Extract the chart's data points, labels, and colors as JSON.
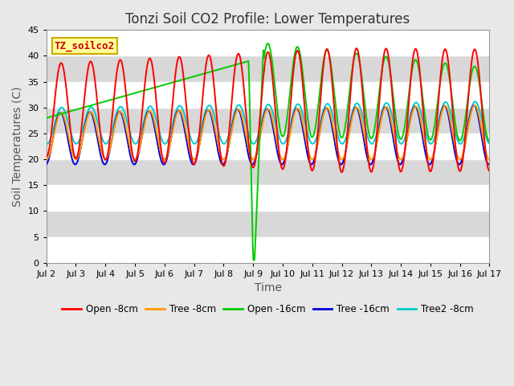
{
  "title": "Tonzi Soil CO2 Profile: Lower Temperatures",
  "xlabel": "Time",
  "ylabel": "Soil Temperatures (C)",
  "ylim": [
    0,
    45
  ],
  "yticks": [
    0,
    5,
    10,
    15,
    20,
    25,
    30,
    35,
    40,
    45
  ],
  "xtick_labels": [
    "Jul 2",
    "Jul 3",
    "Jul 4",
    "Jul 5",
    "Jul 6",
    "Jul 7",
    "Jul 8",
    "Jul 9",
    "Jul 10",
    "Jul 11",
    "Jul 12",
    "Jul 13",
    "Jul 14",
    "Jul 15",
    "Jul 16",
    "Jul 17"
  ],
  "series_colors": {
    "Open -8cm": "#ff0000",
    "Tree -8cm": "#ff9900",
    "Open -16cm": "#00cc00",
    "Tree -16cm": "#0000dd",
    "Tree2 -8cm": "#00cccc"
  },
  "legend_box_facecolor": "#ffff99",
  "legend_box_edgecolor": "#ccaa00",
  "legend_text_color": "#cc0000",
  "legend_label": "TZ_soilco2",
  "bg_color": "#e8e8e8",
  "plot_bg_upper": "#f0f0f0",
  "plot_bg_lower": "#e0e0e0",
  "grid_color": "#ffffff",
  "title_fontsize": 12,
  "axis_label_fontsize": 10,
  "tick_fontsize": 8,
  "linewidth": 1.4
}
